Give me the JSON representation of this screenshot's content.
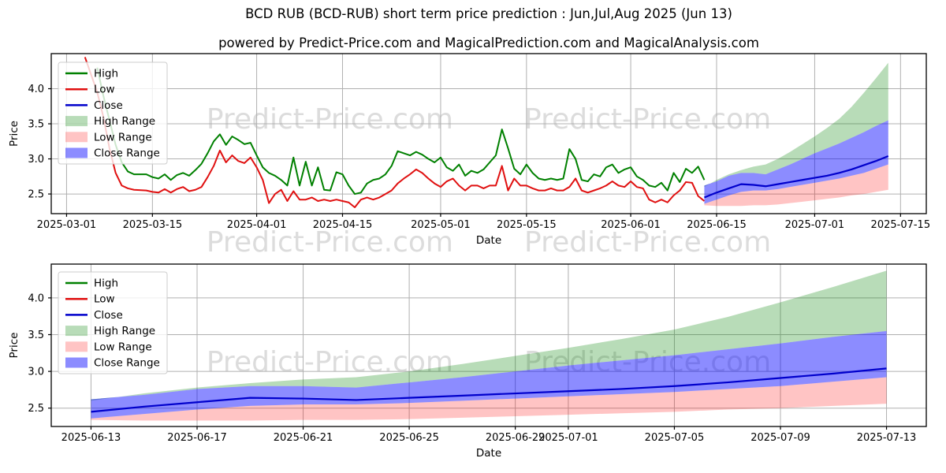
{
  "title": "BCD RUB (BCD-RUB) short term price prediction : Jun,Jul,Aug 2025 (Jun 13)",
  "subtitle": "powered by Predict-Price.com and MagicalPrediction.com and MagicalAnalysis.com",
  "watermark": {
    "text": "Predict-Price.com"
  },
  "colors": {
    "high": "#008000",
    "low": "#e01010",
    "close": "#0000cc",
    "high_range": "#008000",
    "high_range_alpha": 0.28,
    "low_range": "#ff0000",
    "low_range_alpha": 0.23,
    "close_range": "#0000ff",
    "close_range_alpha": 0.45,
    "grid": "#b0b0b0",
    "frame": "#000000",
    "text": "#000000",
    "watermark": "#dcdcdc"
  },
  "legend": {
    "items": [
      {
        "label": "High",
        "swatch": "line",
        "color_key": "high"
      },
      {
        "label": "Low",
        "swatch": "line",
        "color_key": "low"
      },
      {
        "label": "Close",
        "swatch": "line",
        "color_key": "close"
      },
      {
        "label": "High Range",
        "swatch": "patch",
        "color_key": "high_range"
      },
      {
        "label": "Low Range",
        "swatch": "patch",
        "color_key": "low_range"
      },
      {
        "label": "Close Range",
        "swatch": "patch",
        "color_key": "close_range"
      }
    ]
  },
  "chart_data": {
    "type": "line",
    "charts": [
      {
        "name": "overview-with-history",
        "xlabel": "Date",
        "ylabel": "Price",
        "grid": true,
        "legend_position": "upper left",
        "xlim": [
          -2.5,
          140.2
        ],
        "ylim": [
          2.22,
          4.5
        ],
        "yticks": [
          2.5,
          3.0,
          3.5,
          4.0
        ],
        "xticks": [
          {
            "label": "2025-03-01",
            "d": 0
          },
          {
            "label": "2025-03-15",
            "d": 14
          },
          {
            "label": "2025-04-01",
            "d": 31
          },
          {
            "label": "2025-04-15",
            "d": 45
          },
          {
            "label": "2025-05-01",
            "d": 61
          },
          {
            "label": "2025-05-15",
            "d": 75
          },
          {
            "label": "2025-06-01",
            "d": 92
          },
          {
            "label": "2025-06-15",
            "d": 106
          },
          {
            "label": "2025-07-01",
            "d": 122
          },
          {
            "label": "2025-07-15",
            "d": 136
          }
        ],
        "show_history": true,
        "forecast_day_offset": 104
      },
      {
        "name": "forecast-zoom",
        "xlabel": "Date",
        "ylabel": "Price",
        "grid": true,
        "legend_position": "upper left",
        "xlim": [
          -1.5,
          31.5
        ],
        "ylim": [
          2.25,
          4.46
        ],
        "yticks": [
          2.5,
          3.0,
          3.5,
          4.0
        ],
        "xticks": [
          {
            "label": "2025-06-13",
            "d": 0
          },
          {
            "label": "2025-06-17",
            "d": 4
          },
          {
            "label": "2025-06-21",
            "d": 8
          },
          {
            "label": "2025-06-25",
            "d": 12
          },
          {
            "label": "2025-06-29",
            "d": 16
          },
          {
            "label": "2025-07-01",
            "d": 18
          },
          {
            "label": "2025-07-05",
            "d": 22
          },
          {
            "label": "2025-07-09",
            "d": 26
          },
          {
            "label": "2025-07-13",
            "d": 30
          }
        ],
        "show_history": false,
        "forecast_day_offset": 0
      }
    ],
    "historical": {
      "start_date": "2025-03-01",
      "high": [
        [
          5,
          4.3
        ],
        [
          6,
          3.9
        ],
        [
          7,
          3.55
        ],
        [
          8,
          3.2
        ],
        [
          9,
          2.95
        ],
        [
          10,
          2.82
        ],
        [
          11,
          2.78
        ],
        [
          13,
          2.78
        ],
        [
          14,
          2.74
        ],
        [
          15,
          2.72
        ],
        [
          16,
          2.78
        ],
        [
          17,
          2.7
        ],
        [
          18,
          2.77
        ],
        [
          19,
          2.8
        ],
        [
          20,
          2.76
        ],
        [
          21,
          2.84
        ],
        [
          22,
          2.93
        ],
        [
          23,
          3.08
        ],
        [
          24,
          3.25
        ],
        [
          25,
          3.35
        ],
        [
          26,
          3.2
        ],
        [
          27,
          3.32
        ],
        [
          28,
          3.27
        ],
        [
          29,
          3.21
        ],
        [
          30,
          3.23
        ],
        [
          31,
          3.05
        ],
        [
          32,
          2.88
        ],
        [
          33,
          2.8
        ],
        [
          34,
          2.76
        ],
        [
          35,
          2.7
        ],
        [
          36,
          2.62
        ],
        [
          37,
          3.02
        ],
        [
          38,
          2.62
        ],
        [
          39,
          2.96
        ],
        [
          40,
          2.62
        ],
        [
          41,
          2.88
        ],
        [
          42,
          2.56
        ],
        [
          43,
          2.55
        ],
        [
          44,
          2.81
        ],
        [
          45,
          2.78
        ],
        [
          46,
          2.62
        ],
        [
          47,
          2.5
        ],
        [
          48,
          2.52
        ],
        [
          49,
          2.65
        ],
        [
          50,
          2.7
        ],
        [
          51,
          2.72
        ],
        [
          52,
          2.78
        ],
        [
          53,
          2.9
        ],
        [
          54,
          3.11
        ],
        [
          55,
          3.08
        ],
        [
          56,
          3.05
        ],
        [
          57,
          3.1
        ],
        [
          58,
          3.06
        ],
        [
          59,
          3.0
        ],
        [
          60,
          2.95
        ],
        [
          61,
          3.02
        ],
        [
          62,
          2.88
        ],
        [
          63,
          2.83
        ],
        [
          64,
          2.92
        ],
        [
          65,
          2.76
        ],
        [
          66,
          2.83
        ],
        [
          67,
          2.8
        ],
        [
          68,
          2.85
        ],
        [
          69,
          2.95
        ],
        [
          70,
          3.05
        ],
        [
          71,
          3.42
        ],
        [
          72,
          3.15
        ],
        [
          73,
          2.86
        ],
        [
          74,
          2.78
        ],
        [
          75,
          2.92
        ],
        [
          76,
          2.8
        ],
        [
          77,
          2.72
        ],
        [
          78,
          2.7
        ],
        [
          79,
          2.72
        ],
        [
          80,
          2.7
        ],
        [
          81,
          2.72
        ],
        [
          82,
          3.14
        ],
        [
          83,
          3.0
        ],
        [
          84,
          2.7
        ],
        [
          85,
          2.68
        ],
        [
          86,
          2.78
        ],
        [
          87,
          2.75
        ],
        [
          88,
          2.88
        ],
        [
          89,
          2.92
        ],
        [
          90,
          2.8
        ],
        [
          91,
          2.85
        ],
        [
          92,
          2.88
        ],
        [
          93,
          2.75
        ],
        [
          94,
          2.7
        ],
        [
          95,
          2.62
        ],
        [
          96,
          2.6
        ],
        [
          97,
          2.66
        ],
        [
          98,
          2.55
        ],
        [
          99,
          2.8
        ],
        [
          100,
          2.67
        ],
        [
          101,
          2.86
        ],
        [
          102,
          2.8
        ],
        [
          103,
          2.89
        ],
        [
          104,
          2.7
        ]
      ],
      "low": [
        [
          3,
          4.45
        ],
        [
          5,
          3.95
        ],
        [
          6,
          3.6
        ],
        [
          7,
          3.15
        ],
        [
          8,
          2.8
        ],
        [
          9,
          2.62
        ],
        [
          10,
          2.58
        ],
        [
          11,
          2.56
        ],
        [
          13,
          2.55
        ],
        [
          14,
          2.53
        ],
        [
          15,
          2.52
        ],
        [
          16,
          2.57
        ],
        [
          17,
          2.52
        ],
        [
          18,
          2.57
        ],
        [
          19,
          2.6
        ],
        [
          20,
          2.54
        ],
        [
          21,
          2.56
        ],
        [
          22,
          2.6
        ],
        [
          23,
          2.74
        ],
        [
          24,
          2.9
        ],
        [
          25,
          3.12
        ],
        [
          26,
          2.95
        ],
        [
          27,
          3.05
        ],
        [
          28,
          2.97
        ],
        [
          29,
          2.94
        ],
        [
          30,
          3.02
        ],
        [
          31,
          2.88
        ],
        [
          32,
          2.7
        ],
        [
          33,
          2.37
        ],
        [
          34,
          2.5
        ],
        [
          35,
          2.56
        ],
        [
          36,
          2.4
        ],
        [
          37,
          2.54
        ],
        [
          38,
          2.42
        ],
        [
          39,
          2.42
        ],
        [
          40,
          2.45
        ],
        [
          41,
          2.4
        ],
        [
          42,
          2.42
        ],
        [
          43,
          2.4
        ],
        [
          44,
          2.42
        ],
        [
          45,
          2.4
        ],
        [
          46,
          2.38
        ],
        [
          47,
          2.31
        ],
        [
          48,
          2.42
        ],
        [
          49,
          2.45
        ],
        [
          50,
          2.42
        ],
        [
          51,
          2.45
        ],
        [
          52,
          2.5
        ],
        [
          53,
          2.55
        ],
        [
          54,
          2.65
        ],
        [
          55,
          2.72
        ],
        [
          56,
          2.78
        ],
        [
          57,
          2.85
        ],
        [
          58,
          2.8
        ],
        [
          59,
          2.72
        ],
        [
          60,
          2.65
        ],
        [
          61,
          2.6
        ],
        [
          62,
          2.68
        ],
        [
          63,
          2.72
        ],
        [
          64,
          2.62
        ],
        [
          65,
          2.55
        ],
        [
          66,
          2.62
        ],
        [
          67,
          2.62
        ],
        [
          68,
          2.58
        ],
        [
          69,
          2.62
        ],
        [
          70,
          2.62
        ],
        [
          71,
          2.9
        ],
        [
          72,
          2.55
        ],
        [
          73,
          2.72
        ],
        [
          74,
          2.62
        ],
        [
          75,
          2.62
        ],
        [
          76,
          2.58
        ],
        [
          77,
          2.55
        ],
        [
          78,
          2.55
        ],
        [
          79,
          2.58
        ],
        [
          80,
          2.55
        ],
        [
          81,
          2.55
        ],
        [
          82,
          2.6
        ],
        [
          83,
          2.72
        ],
        [
          84,
          2.55
        ],
        [
          85,
          2.52
        ],
        [
          86,
          2.55
        ],
        [
          87,
          2.58
        ],
        [
          88,
          2.62
        ],
        [
          89,
          2.68
        ],
        [
          90,
          2.62
        ],
        [
          91,
          2.6
        ],
        [
          92,
          2.68
        ],
        [
          93,
          2.6
        ],
        [
          94,
          2.58
        ],
        [
          95,
          2.42
        ],
        [
          96,
          2.38
        ],
        [
          97,
          2.42
        ],
        [
          98,
          2.38
        ],
        [
          99,
          2.48
        ],
        [
          100,
          2.55
        ],
        [
          101,
          2.67
        ],
        [
          102,
          2.66
        ],
        [
          103,
          2.47
        ],
        [
          104,
          2.4
        ]
      ]
    },
    "forecast": {
      "start_date": "2025-06-13",
      "x_days": [
        0,
        2,
        4,
        6,
        8,
        10,
        12,
        14,
        16,
        18,
        20,
        22,
        24,
        26,
        28,
        30
      ],
      "high_range_top": [
        2.6,
        2.7,
        2.78,
        2.84,
        2.89,
        2.92,
        3.0,
        3.1,
        3.21,
        3.32,
        3.44,
        3.57,
        3.74,
        3.94,
        4.15,
        4.37
      ],
      "close_range_top": [
        2.62,
        2.68,
        2.76,
        2.8,
        2.8,
        2.78,
        2.85,
        2.92,
        3.0,
        3.08,
        3.15,
        3.22,
        3.3,
        3.38,
        3.47,
        3.55
      ],
      "close": [
        2.45,
        2.52,
        2.58,
        2.64,
        2.63,
        2.61,
        2.64,
        2.67,
        2.7,
        2.73,
        2.76,
        2.8,
        2.85,
        2.91,
        2.97,
        3.04
      ],
      "close_range_bottom": [
        2.36,
        2.42,
        2.48,
        2.53,
        2.55,
        2.55,
        2.57,
        2.6,
        2.63,
        2.66,
        2.69,
        2.72,
        2.76,
        2.8,
        2.86,
        2.92
      ],
      "low_range_bottom": [
        2.34,
        2.33,
        2.33,
        2.33,
        2.34,
        2.34,
        2.35,
        2.37,
        2.39,
        2.41,
        2.43,
        2.45,
        2.48,
        2.5,
        2.53,
        2.56
      ]
    }
  }
}
